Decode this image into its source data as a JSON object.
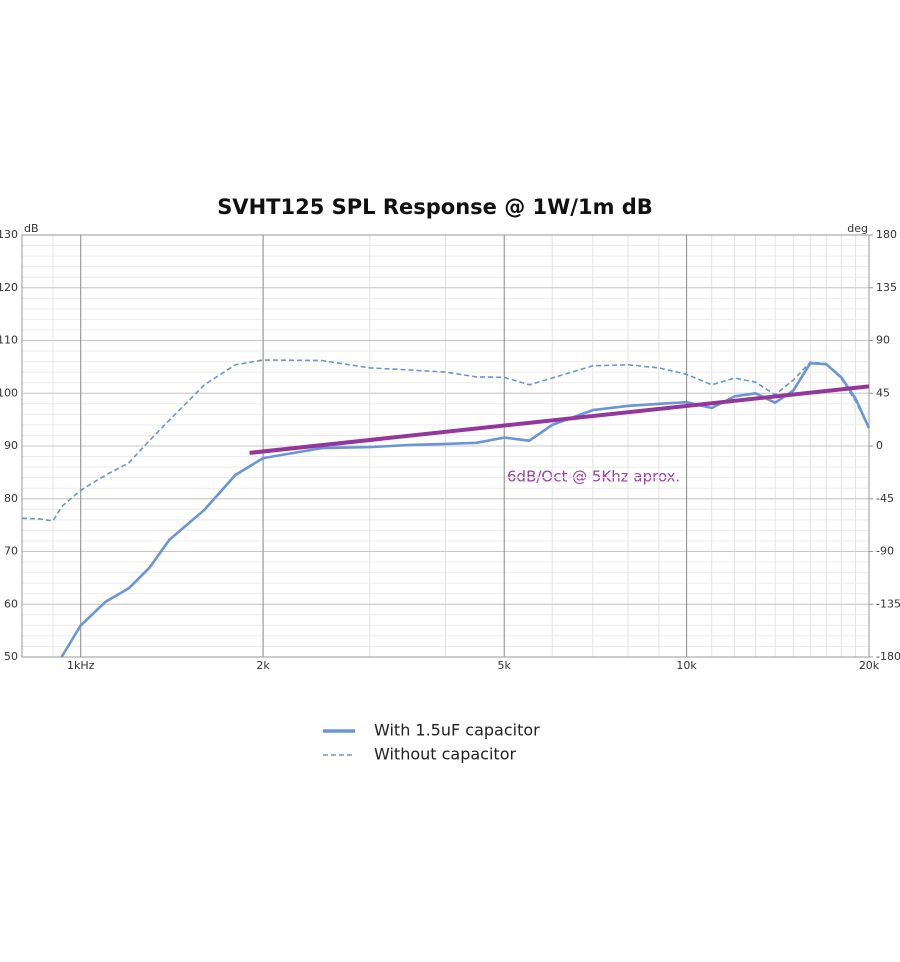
{
  "chart_data": {
    "type": "line",
    "title": "SVHT125 SPL Response @ 1W/1m dB",
    "y_unit": "dB",
    "y2_unit": "deg",
    "x_scale": "log",
    "xlim": [
      800,
      20000
    ],
    "xticks": [
      {
        "value": 1000,
        "label": "1kHz"
      },
      {
        "value": 2000,
        "label": "2k"
      },
      {
        "value": 5000,
        "label": "5k"
      },
      {
        "value": 10000,
        "label": "10k"
      },
      {
        "value": 20000,
        "label": "20k"
      }
    ],
    "xminor": [
      900,
      3000,
      4000,
      6000,
      7000,
      8000,
      9000,
      11000,
      12000,
      13000,
      14000,
      15000,
      16000,
      17000,
      18000,
      19000
    ],
    "ylim": [
      50,
      130
    ],
    "yticks": [
      50,
      60,
      70,
      80,
      90,
      100,
      110,
      120,
      130
    ],
    "yminor": 2,
    "y2lim": [
      -180,
      180
    ],
    "y2ticks": [
      -180,
      -135,
      -90,
      -45,
      0,
      45,
      90,
      135,
      180
    ],
    "grid": true,
    "x": [
      800,
      850,
      900,
      930,
      1000,
      1100,
      1200,
      1300,
      1400,
      1600,
      1800,
      2000,
      2500,
      3000,
      3500,
      4000,
      4500,
      5000,
      5500,
      6000,
      7000,
      8000,
      9000,
      10000,
      11000,
      12000,
      13000,
      14000,
      15000,
      16000,
      17000,
      18000,
      19000,
      20000
    ],
    "series": [
      {
        "name": "With 1.5uF capacitor",
        "color": "#6a95d6",
        "dash": false,
        "values": [
          null,
          null,
          null,
          50,
          56,
          60.5,
          63,
          67,
          72.2,
          77.9,
          84.5,
          87.7,
          89.6,
          89.8,
          90.2,
          90.4,
          90.6,
          91.6,
          91,
          94,
          96.8,
          97.6,
          98,
          98.3,
          97.2,
          99.4,
          100,
          98.2,
          100.5,
          105.7,
          105.5,
          103,
          99,
          93.4
        ]
      },
      {
        "name": "Without capacitor",
        "color": "#6a95d6",
        "dash": true,
        "values": [
          76.3,
          76.2,
          75.8,
          78.5,
          81.6,
          84.5,
          86.8,
          91.1,
          94.9,
          101.6,
          105.4,
          106.3,
          106.2,
          104.8,
          104.4,
          104,
          103.1,
          103,
          101.6,
          102.9,
          105.2,
          105.4,
          104.8,
          103.6,
          101.6,
          102.9,
          102.1,
          99.7,
          102.5,
          105.9,
          105.6,
          102.8,
          98.5,
          93.4
        ]
      }
    ],
    "trend_line": {
      "color": "#93379d",
      "x": [
        1900,
        20000
      ],
      "values": [
        88.7,
        101.3
      ]
    },
    "annotation": "6dB/Oct @ 5Khz aprox."
  }
}
